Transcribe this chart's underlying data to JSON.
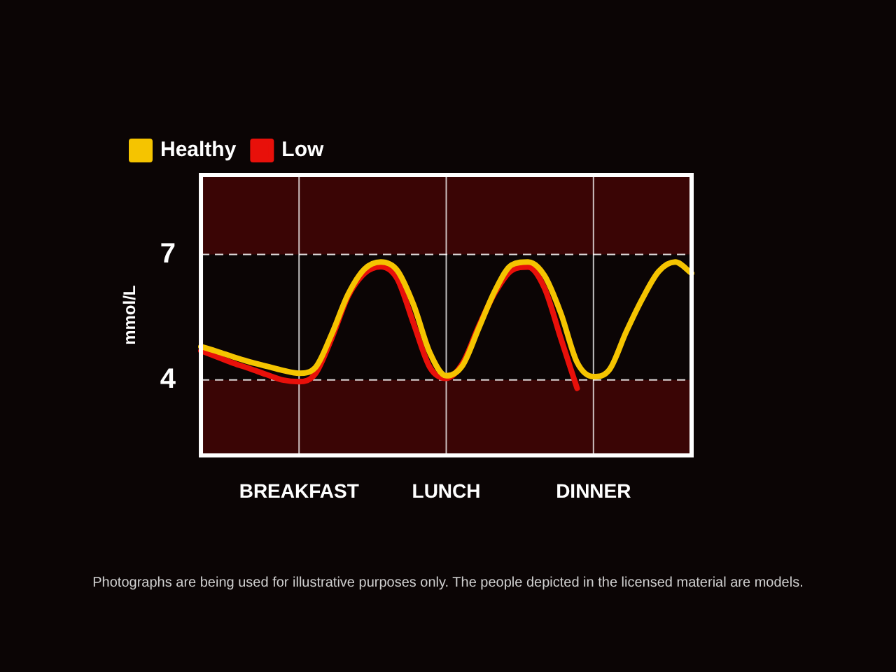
{
  "chart_data": {
    "type": "line",
    "ylabel": "mmol/L",
    "annotations": [
      "Photographs are being used for illustrative purposes only. The people depicted in the licensed material are models."
    ],
    "categories": [
      null,
      null,
      null,
      null,
      null,
      null,
      "BREAKFAST",
      null,
      null,
      null,
      null,
      null,
      null,
      null,
      null,
      "LUNCH",
      null,
      null,
      null,
      null,
      null,
      null,
      null,
      null,
      "DINNER",
      null,
      null,
      null,
      null,
      null,
      null
    ],
    "ylim": [
      2.2,
      8.9
    ],
    "yticks": [
      4,
      7
    ],
    "grid": true,
    "legend": "top left",
    "marker": "none",
    "bands": [
      {
        "axis": "y",
        "from": 2.2,
        "to": 4,
        "color": "#3a0505"
      },
      {
        "axis": "y",
        "from": 7,
        "to": 8.9,
        "color": "#3a0505"
      }
    ],
    "series": [
      {
        "name": "Healthy",
        "color": "#f5c400",
        "values": [
          4.8,
          4.68,
          4.55,
          4.43,
          4.33,
          4.23,
          4.16,
          4.3,
          5.1,
          6.05,
          6.65,
          6.82,
          6.62,
          5.8,
          4.65,
          4.1,
          4.35,
          5.25,
          6.15,
          6.75,
          6.82,
          6.5,
          5.6,
          4.42,
          4.08,
          4.26,
          5.15,
          5.95,
          6.6,
          6.82,
          6.55
        ]
      },
      {
        "name": "Low",
        "color": "#e8100a",
        "values": [
          4.7,
          4.55,
          4.4,
          4.27,
          4.13,
          4.0,
          3.96,
          4.15,
          5.0,
          6.0,
          6.55,
          6.71,
          6.42,
          5.35,
          4.3,
          4.04,
          4.4,
          5.3,
          6.1,
          6.62,
          6.7,
          6.2,
          5.0,
          3.8,
          null,
          null,
          null,
          null,
          null,
          null,
          null
        ]
      }
    ]
  }
}
